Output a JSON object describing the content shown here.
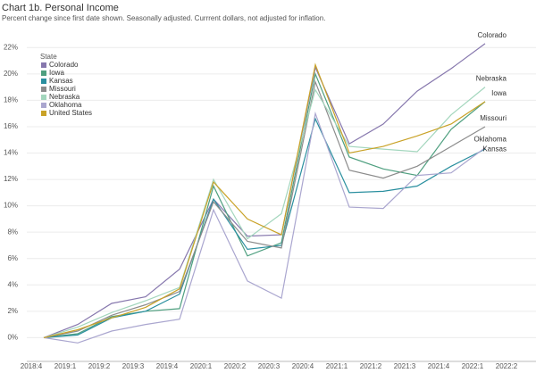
{
  "chart_data": {
    "type": "line",
    "title": "Chart 1b. Personal Income",
    "subtitle": "Percent change since first date shown. Seasonally adjusted. Currrent dollars, not adjusted for inflation.",
    "legend_title": "State",
    "legend": "top-left",
    "grid": true,
    "categories": [
      "2018:4",
      "2019:1",
      "2019:2",
      "2019:3",
      "2019:4",
      "2020:1",
      "2020:2",
      "2020:3",
      "2020:4",
      "2021:1",
      "2021:2",
      "2021:3",
      "2021:4",
      "2022:1",
      "2022:2"
    ],
    "ylim": [
      -1.8,
      22.9
    ],
    "yticks": [
      {
        "value": 0,
        "label": "0%"
      },
      {
        "value": 2,
        "label": "2%"
      },
      {
        "value": 4,
        "label": "4%"
      },
      {
        "value": 6,
        "label": "6%"
      },
      {
        "value": 8,
        "label": "8%"
      },
      {
        "value": 10,
        "label": "10%"
      },
      {
        "value": 12,
        "label": "12%"
      },
      {
        "value": 14,
        "label": "14%"
      },
      {
        "value": 16,
        "label": "16%"
      },
      {
        "value": 18,
        "label": "18%"
      },
      {
        "value": 20,
        "label": "20%"
      },
      {
        "value": 22,
        "label": "22%"
      }
    ],
    "series": [
      {
        "name": "Colorado",
        "color": "#8677ad",
        "end_label": true,
        "values": [
          0,
          1.0,
          2.6,
          3.1,
          5.2,
          10.5,
          7.7,
          7.8,
          20.5,
          14.7,
          16.2,
          18.7,
          20.4,
          22.3,
          null
        ]
      },
      {
        "name": "Iowa",
        "color": "#4e9f7f",
        "end_label": true,
        "values": [
          0,
          0.3,
          1.6,
          2.0,
          2.2,
          11.5,
          6.2,
          7.2,
          20.0,
          13.7,
          12.8,
          12.3,
          15.8,
          17.9,
          null
        ]
      },
      {
        "name": "Kansas",
        "color": "#2a8f9f",
        "end_label": true,
        "values": [
          0,
          0.2,
          1.5,
          2.0,
          3.3,
          10.5,
          6.7,
          7.0,
          16.6,
          11.0,
          11.1,
          11.5,
          13.0,
          14.3,
          null
        ]
      },
      {
        "name": "Missouri",
        "color": "#8c8c8c",
        "end_label": true,
        "values": [
          0,
          0.5,
          1.7,
          2.5,
          3.5,
          10.3,
          7.3,
          6.8,
          19.4,
          12.7,
          12.1,
          13.0,
          14.5,
          16.0,
          null
        ]
      },
      {
        "name": "Nebraska",
        "color": "#a3d6bd",
        "end_label": true,
        "values": [
          0,
          0.8,
          1.9,
          2.8,
          3.8,
          12.0,
          7.5,
          9.4,
          18.8,
          14.5,
          14.3,
          14.1,
          16.9,
          19.0,
          null
        ]
      },
      {
        "name": "Oklahoma",
        "color": "#aaa6cf",
        "end_label": true,
        "values": [
          0,
          -0.4,
          0.5,
          1.0,
          1.4,
          9.7,
          4.3,
          3.0,
          17.0,
          9.9,
          9.8,
          12.3,
          12.5,
          14.4,
          null
        ]
      },
      {
        "name": "United States",
        "color": "#c9a227",
        "end_label": false,
        "values": [
          0,
          0.6,
          1.5,
          2.3,
          3.7,
          11.8,
          9.0,
          7.8,
          20.7,
          14.0,
          14.5,
          15.3,
          16.2,
          17.9,
          null
        ]
      }
    ]
  }
}
